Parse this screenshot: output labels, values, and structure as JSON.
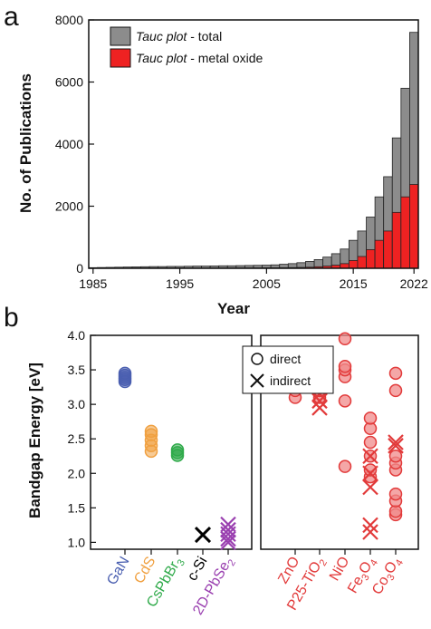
{
  "panel_labels": [
    "a",
    "b"
  ],
  "colors": {
    "total": "#8c8c8c",
    "metal_oxide": "#ee2222",
    "GaN": "#4a5fb0",
    "CdS": "#f0a040",
    "CsPbBr3": "#2faa4a",
    "c-Si": "#000000",
    "2D-PbSe2": "#9a40b0",
    "oxides": "#e23a3a"
  },
  "chart_data": [
    {
      "type": "bar",
      "stacked_overlay": true,
      "x": [
        1985,
        1986,
        1987,
        1988,
        1989,
        1990,
        1991,
        1992,
        1993,
        1994,
        1995,
        1996,
        1997,
        1998,
        1999,
        2000,
        2001,
        2002,
        2003,
        2004,
        2005,
        2006,
        2007,
        2008,
        2009,
        2010,
        2011,
        2012,
        2013,
        2014,
        2015,
        2016,
        2017,
        2018,
        2019,
        2020,
        2021,
        2022
      ],
      "series": [
        {
          "name": "Tauc plot - total",
          "values": [
            20,
            25,
            30,
            35,
            40,
            45,
            50,
            55,
            55,
            60,
            60,
            65,
            70,
            70,
            75,
            80,
            80,
            85,
            90,
            95,
            100,
            110,
            130,
            150,
            180,
            220,
            280,
            360,
            470,
            620,
            900,
            1200,
            1650,
            2300,
            2950,
            4200,
            5800,
            7600
          ]
        },
        {
          "name": "Tauc plot - metal oxide",
          "values": [
            2,
            2,
            3,
            3,
            4,
            4,
            5,
            5,
            5,
            6,
            6,
            6,
            7,
            7,
            8,
            8,
            8,
            9,
            9,
            10,
            12,
            14,
            18,
            22,
            28,
            35,
            50,
            70,
            100,
            150,
            250,
            380,
            600,
            900,
            1200,
            1800,
            2300,
            2700
          ]
        }
      ],
      "legend": {
        "entries": [
          {
            "italic": "Tauc plot",
            "rest": " - total"
          },
          {
            "italic": "Tauc plot",
            "rest": " - metal oxide"
          }
        ],
        "placement": "top-left"
      },
      "xlabel": "Year",
      "ylabel": "No. of Publications",
      "xticks": [
        1985,
        1995,
        2005,
        2015,
        2022
      ],
      "yticks": [
        0,
        2000,
        4000,
        6000,
        8000
      ],
      "xlim": [
        1984.5,
        2022.5
      ],
      "ylim": [
        0,
        8000
      ]
    },
    {
      "type": "scatter",
      "ylabel": "Bandgap Energy [eV]",
      "ylim": [
        0.9,
        4.0
      ],
      "yticks": [
        "1.0",
        "1.5",
        "2.0",
        "2.5",
        "3.0",
        "3.5",
        "4.0"
      ],
      "legend": {
        "entries": [
          {
            "marker": "circle",
            "label": "direct"
          },
          {
            "marker": "cross",
            "label": "indirect"
          }
        ],
        "placement": "top-right"
      },
      "left_categories": [
        {
          "label": "GaN",
          "color_key": "GaN",
          "direct": [
            3.33,
            3.36,
            3.39,
            3.42,
            3.45
          ],
          "indirect": []
        },
        {
          "label": "CdS",
          "color_key": "CdS",
          "direct": [
            2.32,
            2.4,
            2.48,
            2.56,
            2.61
          ],
          "indirect": []
        },
        {
          "label": "CsPbBr",
          "sub": "3",
          "color_key": "CsPbBr3",
          "direct": [
            2.26,
            2.3,
            2.34
          ],
          "indirect": []
        },
        {
          "label": "c-Si",
          "color_key": "c-Si",
          "direct": [],
          "indirect": [
            1.11
          ]
        },
        {
          "label": "2D-PbSe",
          "sub": "2",
          "color_key": "2D-PbSe2",
          "direct": [],
          "indirect": [
            1.0,
            1.05,
            1.12,
            1.18,
            1.26
          ]
        }
      ],
      "right_categories": [
        {
          "label": "ZnO",
          "color_key": "oxides",
          "direct": [
            3.1,
            3.2,
            3.25,
            3.3,
            3.32
          ],
          "indirect": []
        },
        {
          "label": "P25-TiO",
          "sub": "2",
          "color_key": "oxides",
          "direct": [
            3.1,
            3.2,
            3.3,
            3.65
          ],
          "indirect": [
            2.95,
            3.05,
            3.15,
            3.25
          ]
        },
        {
          "label": "NiO",
          "color_key": "oxides",
          "direct": [
            2.1,
            3.05,
            3.4,
            3.5,
            3.55,
            3.95
          ],
          "indirect": []
        },
        {
          "label": "Fe",
          "sub": "3",
          "label2": "O",
          "sub2": "4",
          "color_key": "oxides",
          "direct": [
            1.95,
            2.05,
            2.25,
            2.45,
            2.65,
            2.8
          ],
          "indirect": [
            1.15,
            1.25,
            1.8,
            2.0,
            2.25
          ]
        },
        {
          "label": "Co",
          "sub": "3",
          "label2": "O",
          "sub2": "4",
          "color_key": "oxides",
          "direct": [
            1.4,
            1.45,
            1.6,
            1.7,
            2.05,
            2.15,
            2.25,
            3.2,
            3.45
          ],
          "indirect": [
            2.4,
            2.45
          ]
        }
      ]
    }
  ]
}
